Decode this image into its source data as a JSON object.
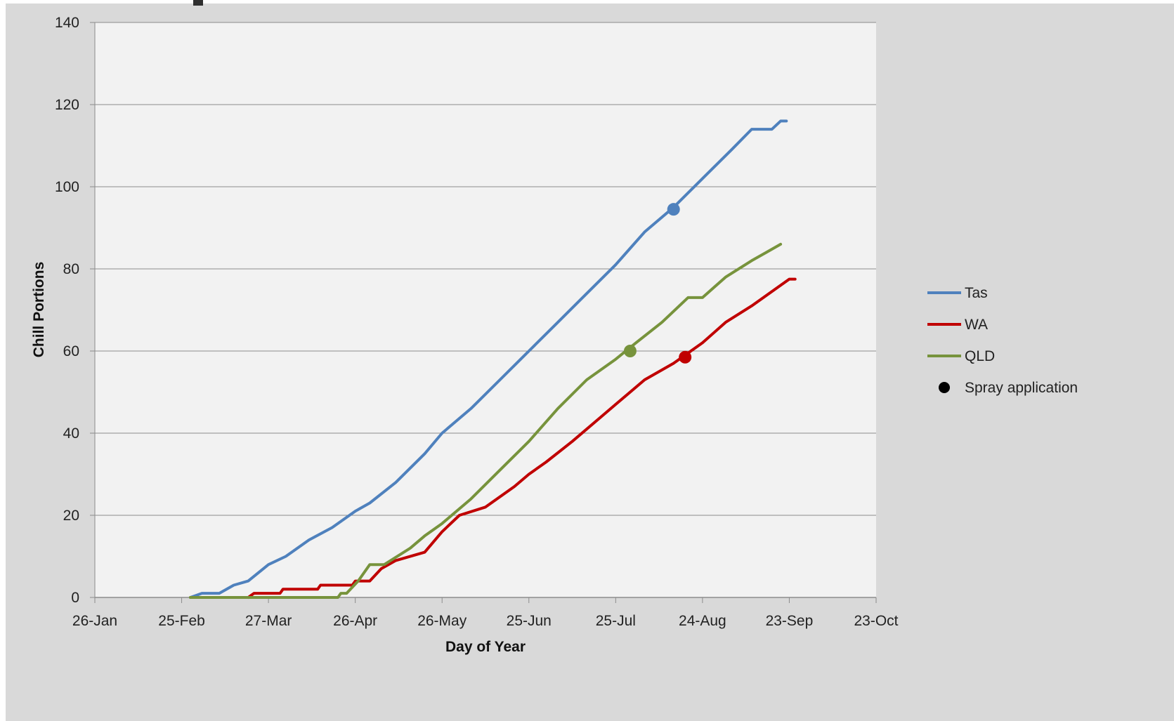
{
  "chart_data": {
    "type": "line",
    "xlabel": "Day of Year",
    "ylabel": "Chill Portions",
    "ylim": [
      0,
      140
    ],
    "yticks": [
      0,
      20,
      40,
      60,
      80,
      100,
      120,
      140
    ],
    "xlim": [
      "2015-01-26",
      "2015-10-23"
    ],
    "xticks": [
      {
        "date": "2015-01-26",
        "label": "26-Jan"
      },
      {
        "date": "2015-02-25",
        "label": "25-Feb"
      },
      {
        "date": "2015-03-27",
        "label": "27-Mar"
      },
      {
        "date": "2015-04-26",
        "label": "26-Apr"
      },
      {
        "date": "2015-05-26",
        "label": "26-May"
      },
      {
        "date": "2015-06-25",
        "label": "25-Jun"
      },
      {
        "date": "2015-07-25",
        "label": "25-Jul"
      },
      {
        "date": "2015-08-24",
        "label": "24-Aug"
      },
      {
        "date": "2015-09-23",
        "label": "23-Sep"
      },
      {
        "date": "2015-10-23",
        "label": "23-Oct"
      }
    ],
    "grid": "horizontal",
    "legend": "right",
    "series": [
      {
        "name": "Tas",
        "color": "#4f81bd",
        "points": [
          [
            "2015-02-28",
            0
          ],
          [
            "2015-03-02",
            0.5
          ],
          [
            "2015-03-04",
            1
          ],
          [
            "2015-03-10",
            1
          ],
          [
            "2015-03-15",
            3
          ],
          [
            "2015-03-20",
            4
          ],
          [
            "2015-03-27",
            8
          ],
          [
            "2015-04-02",
            10
          ],
          [
            "2015-04-10",
            14
          ],
          [
            "2015-04-18",
            17
          ],
          [
            "2015-04-26",
            21
          ],
          [
            "2015-05-01",
            23
          ],
          [
            "2015-05-10",
            28
          ],
          [
            "2015-05-20",
            35
          ],
          [
            "2015-05-26",
            40
          ],
          [
            "2015-06-05",
            46
          ],
          [
            "2015-06-15",
            53
          ],
          [
            "2015-06-25",
            60
          ],
          [
            "2015-07-05",
            67
          ],
          [
            "2015-07-15",
            74
          ],
          [
            "2015-07-25",
            81
          ],
          [
            "2015-08-04",
            89
          ],
          [
            "2015-08-14",
            95
          ],
          [
            "2015-08-24",
            102
          ],
          [
            "2015-09-03",
            109
          ],
          [
            "2015-09-10",
            114
          ],
          [
            "2015-09-17",
            114
          ],
          [
            "2015-09-20",
            116
          ],
          [
            "2015-09-22",
            116
          ]
        ],
        "spray_application": {
          "date": "2015-08-14",
          "value": 94.5
        }
      },
      {
        "name": "WA",
        "color": "#c00000",
        "points": [
          [
            "2015-03-20",
            0
          ],
          [
            "2015-03-22",
            1
          ],
          [
            "2015-03-31",
            1
          ],
          [
            "2015-04-01",
            2
          ],
          [
            "2015-04-13",
            2
          ],
          [
            "2015-04-14",
            3
          ],
          [
            "2015-04-25",
            3
          ],
          [
            "2015-04-26",
            4
          ],
          [
            "2015-05-01",
            4
          ],
          [
            "2015-05-05",
            7
          ],
          [
            "2015-05-10",
            9
          ],
          [
            "2015-05-20",
            11
          ],
          [
            "2015-05-26",
            16
          ],
          [
            "2015-06-01",
            20
          ],
          [
            "2015-06-10",
            22
          ],
          [
            "2015-06-20",
            27
          ],
          [
            "2015-06-25",
            30
          ],
          [
            "2015-07-01",
            33
          ],
          [
            "2015-07-10",
            38
          ],
          [
            "2015-07-20",
            44
          ],
          [
            "2015-07-25",
            47
          ],
          [
            "2015-08-04",
            53
          ],
          [
            "2015-08-14",
            57
          ],
          [
            "2015-08-24",
            62
          ],
          [
            "2015-09-01",
            67
          ],
          [
            "2015-09-10",
            71
          ],
          [
            "2015-09-20",
            76
          ],
          [
            "2015-09-23",
            77.5
          ],
          [
            "2015-09-25",
            77.5
          ]
        ],
        "spray_application": {
          "date": "2015-08-18",
          "value": 58.5
        }
      },
      {
        "name": "QLD",
        "color": "#77933c",
        "points": [
          [
            "2015-02-28",
            0
          ],
          [
            "2015-04-20",
            0
          ],
          [
            "2015-04-21",
            1
          ],
          [
            "2015-04-23",
            1
          ],
          [
            "2015-04-27",
            4
          ],
          [
            "2015-05-01",
            8
          ],
          [
            "2015-05-06",
            8
          ],
          [
            "2015-05-15",
            12
          ],
          [
            "2015-05-20",
            15
          ],
          [
            "2015-05-26",
            18
          ],
          [
            "2015-06-05",
            24
          ],
          [
            "2015-06-15",
            31
          ],
          [
            "2015-06-25",
            38
          ],
          [
            "2015-07-05",
            46
          ],
          [
            "2015-07-15",
            53
          ],
          [
            "2015-07-25",
            58
          ],
          [
            "2015-08-01",
            62
          ],
          [
            "2015-08-10",
            67
          ],
          [
            "2015-08-19",
            73
          ],
          [
            "2015-08-24",
            73
          ],
          [
            "2015-09-01",
            78
          ],
          [
            "2015-09-10",
            82
          ],
          [
            "2015-09-15",
            84
          ],
          [
            "2015-09-20",
            86
          ]
        ],
        "spray_application": {
          "date": "2015-07-30",
          "value": 60
        }
      }
    ],
    "legend_items": [
      {
        "label": "Tas",
        "kind": "line",
        "color": "#4f81bd"
      },
      {
        "label": "WA",
        "kind": "line",
        "color": "#c00000"
      },
      {
        "label": "QLD",
        "kind": "line",
        "color": "#77933c"
      },
      {
        "label": "Spray application",
        "kind": "marker",
        "color": "#000000"
      }
    ]
  }
}
